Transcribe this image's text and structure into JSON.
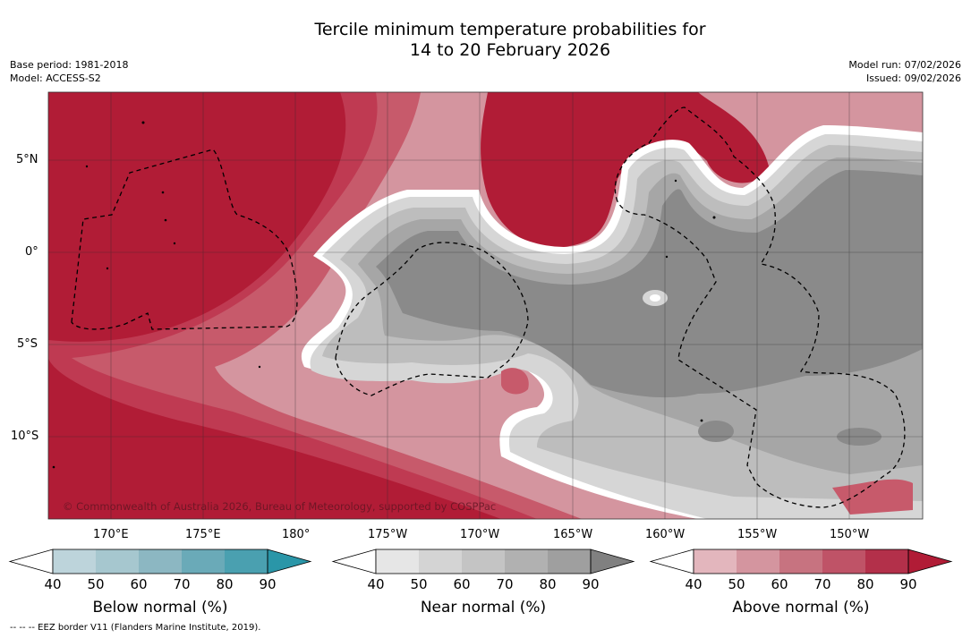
{
  "title_line1": "Tercile minimum temperature probabilities for",
  "title_line2": "14 to 20 February 2026",
  "meta_left": [
    "Base period: 1981-2018",
    "Model: ACCESS-S2"
  ],
  "meta_right": [
    "Model run: 07/02/2026",
    "Issued: 09/02/2026"
  ],
  "copyright": "© Commonwealth of Australia 2026, Bureau of Meteorology, supported by COSPPac",
  "lon_labels": [
    "170°E",
    "175°E",
    "180°",
    "175°W",
    "170°W",
    "165°W",
    "160°W",
    "155°W",
    "150°W"
  ],
  "lat_labels": [
    "5°N",
    "0°",
    "5°S",
    "10°S"
  ],
  "colorbars": [
    {
      "title": "Below normal (%)",
      "ticks": [
        "40",
        "50",
        "60",
        "70",
        "80",
        "90"
      ],
      "colors": [
        "#ffffff",
        "#bdd4db",
        "#a6c7cf",
        "#8cb7c2",
        "#6aaab8",
        "#4aa0b0",
        "#2a96a8"
      ]
    },
    {
      "title": "Near normal (%)",
      "ticks": [
        "40",
        "50",
        "60",
        "70",
        "80",
        "90"
      ],
      "colors": [
        "#ffffff",
        "#e6e6e6",
        "#d4d4d4",
        "#c4c4c4",
        "#b1b1b1",
        "#9f9f9f",
        "#808080"
      ]
    },
    {
      "title": "Above normal (%)",
      "ticks": [
        "40",
        "50",
        "60",
        "70",
        "80",
        "90"
      ],
      "colors": [
        "#ffffff",
        "#e3b6bd",
        "#d4959f",
        "#c77380",
        "#bf5367",
        "#b3304a",
        "#b11c36"
      ]
    }
  ],
  "footnote": "--  --  -- EEZ border V11 (Flanders Marine Institute, 2019)."
}
